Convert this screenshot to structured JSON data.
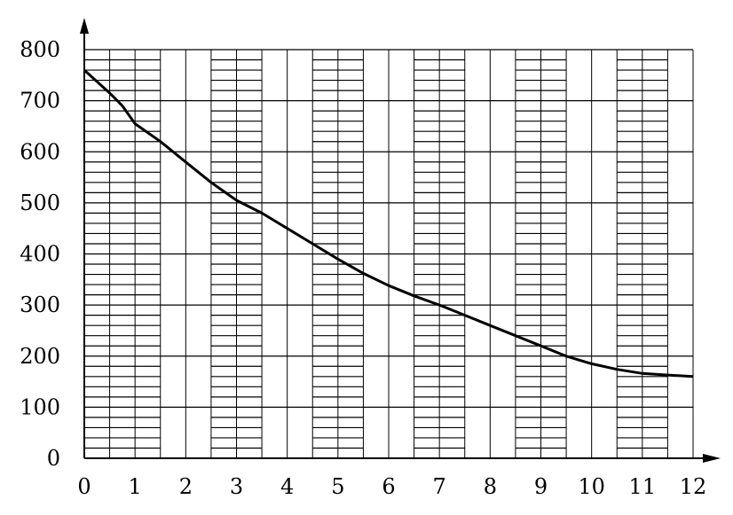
{
  "chart_data": {
    "type": "line",
    "title": "",
    "xlabel": "",
    "ylabel": "",
    "xlim": [
      0,
      12
    ],
    "ylim": [
      0,
      800
    ],
    "x_ticks": [
      0,
      1,
      2,
      3,
      4,
      5,
      6,
      7,
      8,
      9,
      10,
      11,
      12
    ],
    "y_ticks": [
      0,
      100,
      200,
      300,
      400,
      500,
      600,
      700,
      800
    ],
    "x_tick_labels": [
      "0",
      "1",
      "2",
      "3",
      "4",
      "5",
      "6",
      "7",
      "8",
      "9",
      "10",
      "11",
      "12"
    ],
    "y_tick_labels": [
      "0",
      "100",
      "200",
      "300",
      "400",
      "500",
      "600",
      "700",
      "800"
    ],
    "grid": true,
    "axis_arrows": true,
    "series": [
      {
        "color": "#000000",
        "x": [
          0,
          0.5,
          0.75,
          1,
          1.5,
          2,
          2.5,
          3,
          3.5,
          4,
          4.5,
          5,
          5.5,
          6,
          6.5,
          7,
          7.5,
          8,
          8.5,
          9,
          9.5,
          10,
          10.5,
          11,
          11.5,
          12
        ],
        "values": [
          760,
          715,
          690,
          655,
          620,
          580,
          540,
          505,
          480,
          450,
          420,
          390,
          362,
          338,
          318,
          300,
          280,
          260,
          240,
          220,
          200,
          185,
          174,
          166,
          163,
          160
        ]
      }
    ]
  }
}
